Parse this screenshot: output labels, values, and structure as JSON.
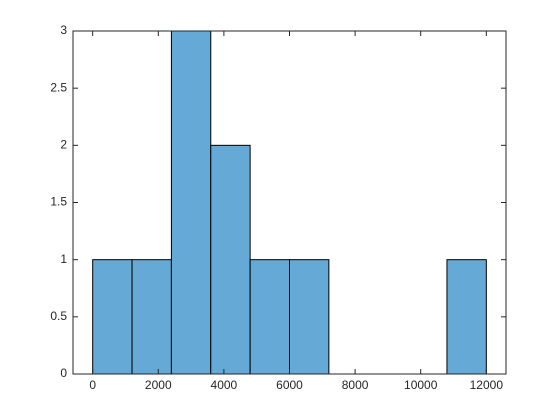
{
  "chart_data": {
    "type": "histogram",
    "bins": [
      0,
      1200,
      2400,
      3600,
      4800,
      6000,
      7200,
      8400,
      9600,
      10800,
      12000
    ],
    "values": [
      1,
      1,
      3,
      2,
      1,
      1,
      0,
      0,
      0,
      1
    ],
    "color": "#65a9d7",
    "edgecolor": "#000000",
    "xlim": [
      -600,
      12600
    ],
    "xticks": [
      0,
      2000,
      4000,
      6000,
      8000,
      10000,
      12000
    ],
    "ylim": [
      0,
      3
    ],
    "yticks": [
      0,
      0.5,
      1,
      1.5,
      2,
      2.5,
      3
    ],
    "grid": false
  }
}
